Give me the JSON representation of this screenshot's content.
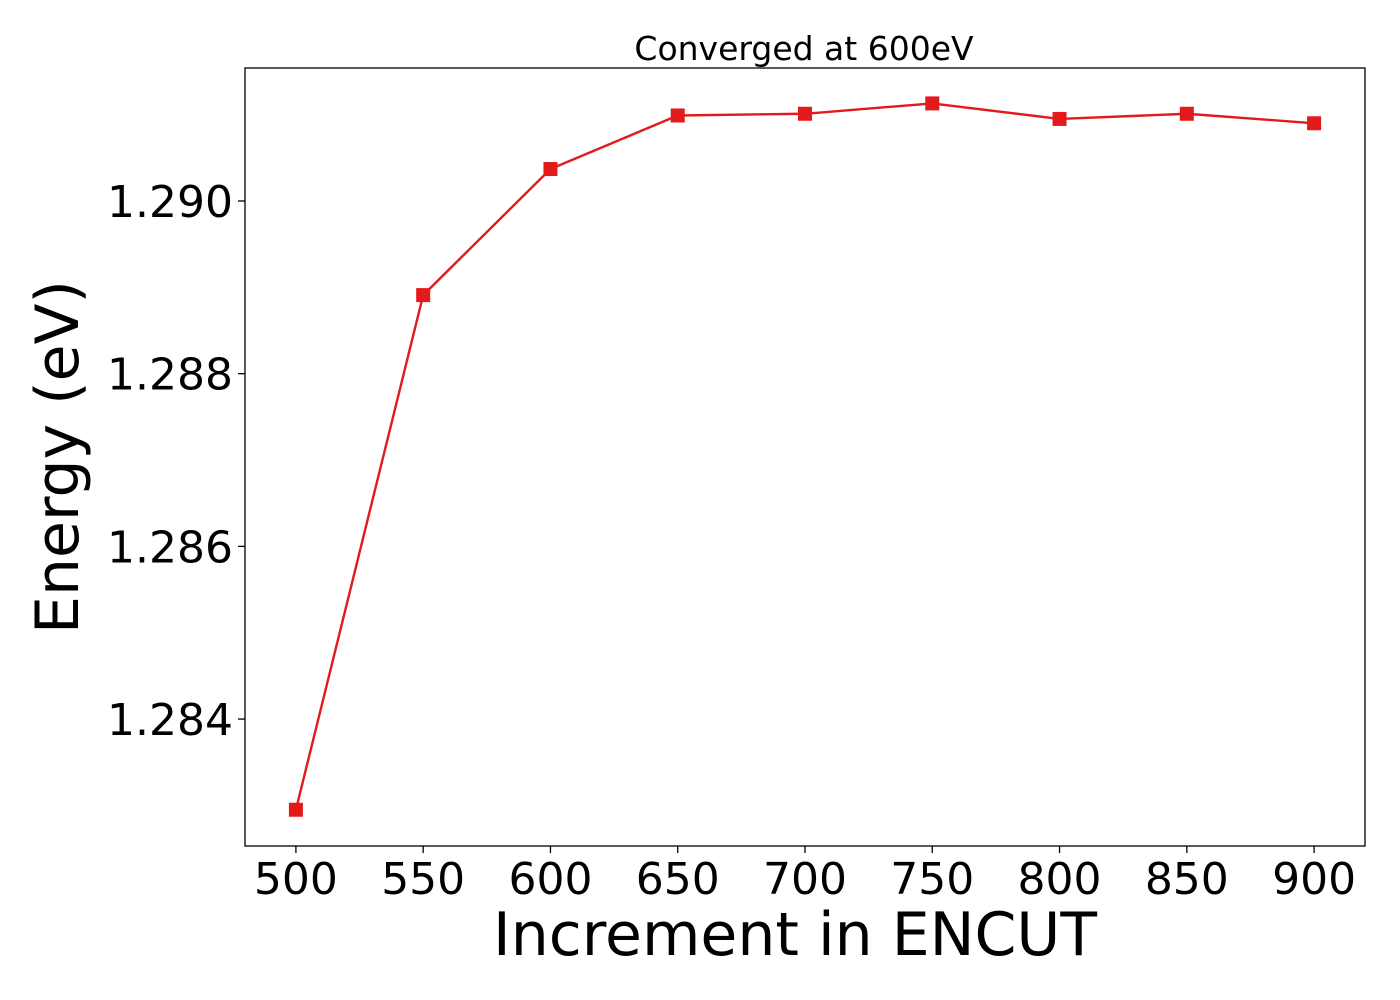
{
  "chart_data": {
    "type": "line",
    "title": "Converged at 600eV",
    "xlabel": "Increment in ENCUT",
    "ylabel": "Energy (eV)",
    "x": [
      500,
      550,
      600,
      650,
      700,
      750,
      800,
      850,
      900
    ],
    "series": [
      {
        "values": [
          1.28295,
          1.28891,
          1.29037,
          1.29099,
          1.29101,
          1.29113,
          1.29095,
          1.29101,
          1.2909
        ],
        "color": "#e31a1c",
        "marker": "square"
      }
    ],
    "xticks": [
      500,
      550,
      600,
      650,
      700,
      750,
      800,
      850,
      900
    ],
    "yticks": [
      1.284,
      1.286,
      1.288,
      1.29
    ],
    "ytick_labels": [
      "1.284",
      "1.286",
      "1.288",
      "1.290"
    ],
    "xlim": [
      480,
      920
    ],
    "ylim": [
      1.28253,
      1.29154
    ],
    "grid": false
  }
}
